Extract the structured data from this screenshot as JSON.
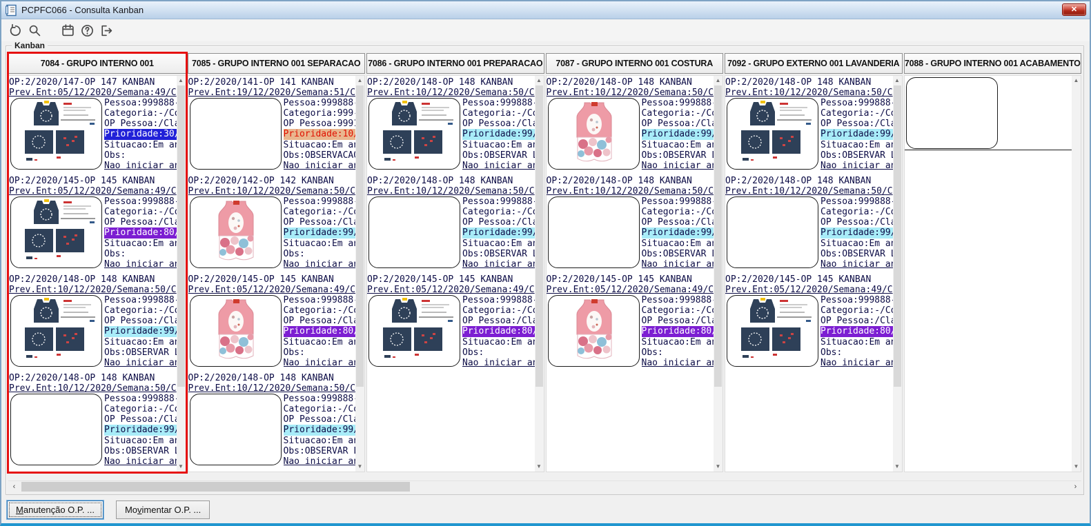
{
  "window": {
    "title": "PCPFC066 - Consulta Kanban",
    "close_glyph": "✕"
  },
  "toolbar": {
    "icons": [
      "refresh",
      "search",
      "calendar",
      "help",
      "exit"
    ]
  },
  "groupbox_label": "Kanban",
  "scrollbar": {
    "up": "▲",
    "down": "▼",
    "left": "‹",
    "right": "›"
  },
  "buttons": [
    {
      "name": "maintenance-op-button",
      "pre": "",
      "key": "M",
      "post": "anutenção O.P. ...",
      "focused": true
    },
    {
      "name": "move-op-button",
      "pre": "Mo",
      "key": "v",
      "post": "imentar O.P. ...",
      "focused": false
    }
  ],
  "colors": {
    "selected_border": "#e61111",
    "card_text": "#0c0c46",
    "priority_blue": "#2121d8",
    "priority_purple": "#7c1ed2",
    "priority_cyan": "#a8ecf8",
    "priority_orange_bg": "#e9b68e",
    "priority_orange_text": "#e01000",
    "priority_light_text": "#ffffff"
  },
  "kanban": {
    "columns": [
      {
        "id": "7084",
        "title": "7084 - GRUPO INTERNO 001",
        "selected": true,
        "cards": [
          {
            "op": "OP:2/2020/147-OP 147 KANBAN",
            "prev": "Prev.Ent:05/12/2020/Semana:49/C",
            "image": "navy-collage",
            "pessoa": "Pessoa:999888-",
            "categoria": "Categoria:-/Co",
            "op_pessoa": "OP Pessoa:/Cla",
            "prioridade": "Prioridade:30/",
            "priority_color": "blue",
            "situacao": "Situacao:Em an",
            "obs": "Obs:",
            "link": "Nao iniciar an"
          },
          {
            "op": "OP:2/2020/145-OP 145 KANBAN",
            "prev": "Prev.Ent:05/12/2020/Semana:49/C",
            "image": "navy-collage",
            "pessoa": "Pessoa:999888-",
            "categoria": "Categoria:-/Co",
            "op_pessoa": "OP Pessoa:/Cla",
            "prioridade": "Prioridade:80/",
            "priority_color": "purple",
            "situacao": "Situacao:Em an",
            "obs": "Obs:",
            "link": "Nao iniciar an"
          },
          {
            "op": "OP:2/2020/148-OP 148 KANBAN",
            "prev": "Prev.Ent:10/12/2020/Semana:50/C",
            "image": "navy-collage",
            "pessoa": "Pessoa:999888-",
            "categoria": "Categoria:-/Co",
            "op_pessoa": "OP Pessoa:/Cla",
            "prioridade": "Prioridade:99/",
            "priority_color": "cyan",
            "situacao": "Situacao:Em an",
            "obs": "Obs:OBSERVAR L",
            "link": "Nao iniciar an"
          },
          {
            "op": "OP:2/2020/148-OP 148 KANBAN",
            "prev": "Prev.Ent:10/12/2020/Semana:50/C",
            "image": "empty",
            "pessoa": "Pessoa:999888-",
            "categoria": "Categoria:-/Co",
            "op_pessoa": "OP Pessoa:/Cla",
            "prioridade": "Prioridade:99/",
            "priority_color": "cyan",
            "situacao": "Situacao:Em an",
            "obs": "Obs:OBSERVAR L",
            "link": "Nao iniciar an"
          }
        ]
      },
      {
        "id": "7085",
        "title": "7085 - GRUPO INTERNO 001 SEPARACAO",
        "selected": false,
        "cards": [
          {
            "op": "OP:2/2020/141-OP 141 KANBAN",
            "prev": "Prev.Ent:19/12/2020/Semana:51/C",
            "image": "empty",
            "pessoa": "Pessoa:999888-",
            "categoria": "Categoria:999-",
            "op_pessoa": "OP Pessoa:9991",
            "prioridade": "Prioridade:10/",
            "priority_color": "orange",
            "situacao": "Situacao:Em an",
            "obs": "Obs:OBSERVACAO",
            "link": "Nao iniciar an"
          },
          {
            "op": "OP:2/2020/142-OP 142 KANBAN",
            "prev": "Prev.Ent:10/12/2020/Semana:50/C",
            "image": "pink-outfit",
            "pessoa": "Pessoa:999888-",
            "categoria": "Categoria:-/Co",
            "op_pessoa": "OP Pessoa:/Cla",
            "prioridade": "Prioridade:99/",
            "priority_color": "cyan",
            "situacao": "Situacao:Em an",
            "obs": "Obs:",
            "link": "Nao iniciar an"
          },
          {
            "op": "OP:2/2020/145-OP 145 KANBAN",
            "prev": "Prev.Ent:05/12/2020/Semana:49/C",
            "image": "pink-outfit",
            "pessoa": "Pessoa:999888-",
            "categoria": "Categoria:-/Co",
            "op_pessoa": "OP Pessoa:/Cla",
            "prioridade": "Prioridade:80/",
            "priority_color": "purple",
            "situacao": "Situacao:Em an",
            "obs": "Obs:",
            "link": "Nao iniciar an"
          },
          {
            "op": "OP:2/2020/148-OP 148 KANBAN",
            "prev": "Prev.Ent:10/12/2020/Semana:50/C",
            "image": "empty",
            "pessoa": "Pessoa:999888-",
            "categoria": "Categoria:-/Co",
            "op_pessoa": "OP Pessoa:/Cla",
            "prioridade": "Prioridade:99/",
            "priority_color": "cyan",
            "situacao": "Situacao:Em an",
            "obs": "Obs:OBSERVAR L",
            "link": "Nao iniciar an"
          }
        ]
      },
      {
        "id": "7086",
        "title": "7086 - GRUPO INTERNO 001 PREPARACAO",
        "selected": false,
        "cards": [
          {
            "op": "OP:2/2020/148-OP 148 KANBAN",
            "prev": "Prev.Ent:10/12/2020/Semana:50/C",
            "image": "navy-collage",
            "pessoa": "Pessoa:999888-",
            "categoria": "Categoria:-/Co",
            "op_pessoa": "OP Pessoa:/Cla",
            "prioridade": "Prioridade:99/",
            "priority_color": "cyan",
            "situacao": "Situacao:Em an",
            "obs": "Obs:OBSERVAR L",
            "link": "Nao iniciar an"
          },
          {
            "op": "OP:2/2020/148-OP 148 KANBAN",
            "prev": "Prev.Ent:10/12/2020/Semana:50/C",
            "image": "empty",
            "pessoa": "Pessoa:999888-",
            "categoria": "Categoria:-/Co",
            "op_pessoa": "OP Pessoa:/Cla",
            "prioridade": "Prioridade:99/",
            "priority_color": "cyan",
            "situacao": "Situacao:Em an",
            "obs": "Obs:OBSERVAR L",
            "link": "Nao iniciar an"
          },
          {
            "op": "OP:2/2020/145-OP 145 KANBAN",
            "prev": "Prev.Ent:05/12/2020/Semana:49/C",
            "image": "navy-collage",
            "pessoa": "Pessoa:999888-",
            "categoria": "Categoria:-/Co",
            "op_pessoa": "OP Pessoa:/Cla",
            "prioridade": "Prioridade:80/",
            "priority_color": "purple",
            "situacao": "Situacao:Em an",
            "obs": "Obs:",
            "link": "Nao iniciar an"
          }
        ]
      },
      {
        "id": "7087",
        "title": "7087 - GRUPO INTERNO 001 COSTURA",
        "selected": false,
        "cards": [
          {
            "op": "OP:2/2020/148-OP 148 KANBAN",
            "prev": "Prev.Ent:10/12/2020/Semana:50/C",
            "image": "pink-outfit",
            "pessoa": "Pessoa:999888-",
            "categoria": "Categoria:-/Co",
            "op_pessoa": "OP Pessoa:/Cla",
            "prioridade": "Prioridade:99/",
            "priority_color": "cyan",
            "situacao": "Situacao:Em an",
            "obs": "Obs:OBSERVAR L",
            "link": "Nao iniciar an"
          },
          {
            "op": "OP:2/2020/148-OP 148 KANBAN",
            "prev": "Prev.Ent:10/12/2020/Semana:50/C",
            "image": "empty",
            "pessoa": "Pessoa:999888-",
            "categoria": "Categoria:-/Co",
            "op_pessoa": "OP Pessoa:/Cla",
            "prioridade": "Prioridade:99/",
            "priority_color": "cyan",
            "situacao": "Situacao:Em an",
            "obs": "Obs:OBSERVAR L",
            "link": "Nao iniciar an"
          },
          {
            "op": "OP:2/2020/145-OP 145 KANBAN",
            "prev": "Prev.Ent:05/12/2020/Semana:49/C",
            "image": "pink-outfit",
            "pessoa": "Pessoa:999888-",
            "categoria": "Categoria:-/Co",
            "op_pessoa": "OP Pessoa:/Cla",
            "prioridade": "Prioridade:80/",
            "priority_color": "purple",
            "situacao": "Situacao:Em an",
            "obs": "Obs:",
            "link": "Nao iniciar an"
          }
        ]
      },
      {
        "id": "7092",
        "title": "7092 - GRUPO EXTERNO 001 LAVANDERIA",
        "selected": false,
        "cards": [
          {
            "op": "OP:2/2020/148-OP 148 KANBAN",
            "prev": "Prev.Ent:10/12/2020/Semana:50/C",
            "image": "navy-collage",
            "pessoa": "Pessoa:999888-",
            "categoria": "Categoria:-/Co",
            "op_pessoa": "OP Pessoa:/Cla",
            "prioridade": "Prioridade:99/",
            "priority_color": "cyan",
            "situacao": "Situacao:Em an",
            "obs": "Obs:OBSERVAR L",
            "link": "Nao iniciar an"
          },
          {
            "op": "OP:2/2020/148-OP 148 KANBAN",
            "prev": "Prev.Ent:10/12/2020/Semana:50/C",
            "image": "empty",
            "pessoa": "Pessoa:999888-",
            "categoria": "Categoria:-/Co",
            "op_pessoa": "OP Pessoa:/Cla",
            "prioridade": "Prioridade:99/",
            "priority_color": "cyan",
            "situacao": "Situacao:Em an",
            "obs": "Obs:OBSERVAR L",
            "link": "Nao iniciar an"
          },
          {
            "op": "OP:2/2020/145-OP 145 KANBAN",
            "prev": "Prev.Ent:05/12/2020/Semana:49/C",
            "image": "navy-collage",
            "pessoa": "Pessoa:999888-",
            "categoria": "Categoria:-/Co",
            "op_pessoa": "OP Pessoa:/Cla",
            "prioridade": "Prioridade:80/",
            "priority_color": "purple",
            "situacao": "Situacao:Em an",
            "obs": "Obs:",
            "link": "Nao iniciar an"
          }
        ]
      },
      {
        "id": "7088",
        "title": "7088 - GRUPO INTERNO 001 ACABAMENTO",
        "selected": false,
        "cards": [
          {
            "op": "",
            "prev": "",
            "image": "empty",
            "empty_card": true,
            "pessoa": "",
            "categoria": "",
            "op_pessoa": "",
            "prioridade": "",
            "priority_color": "none",
            "situacao": "",
            "obs": "",
            "link": ""
          }
        ]
      }
    ]
  }
}
